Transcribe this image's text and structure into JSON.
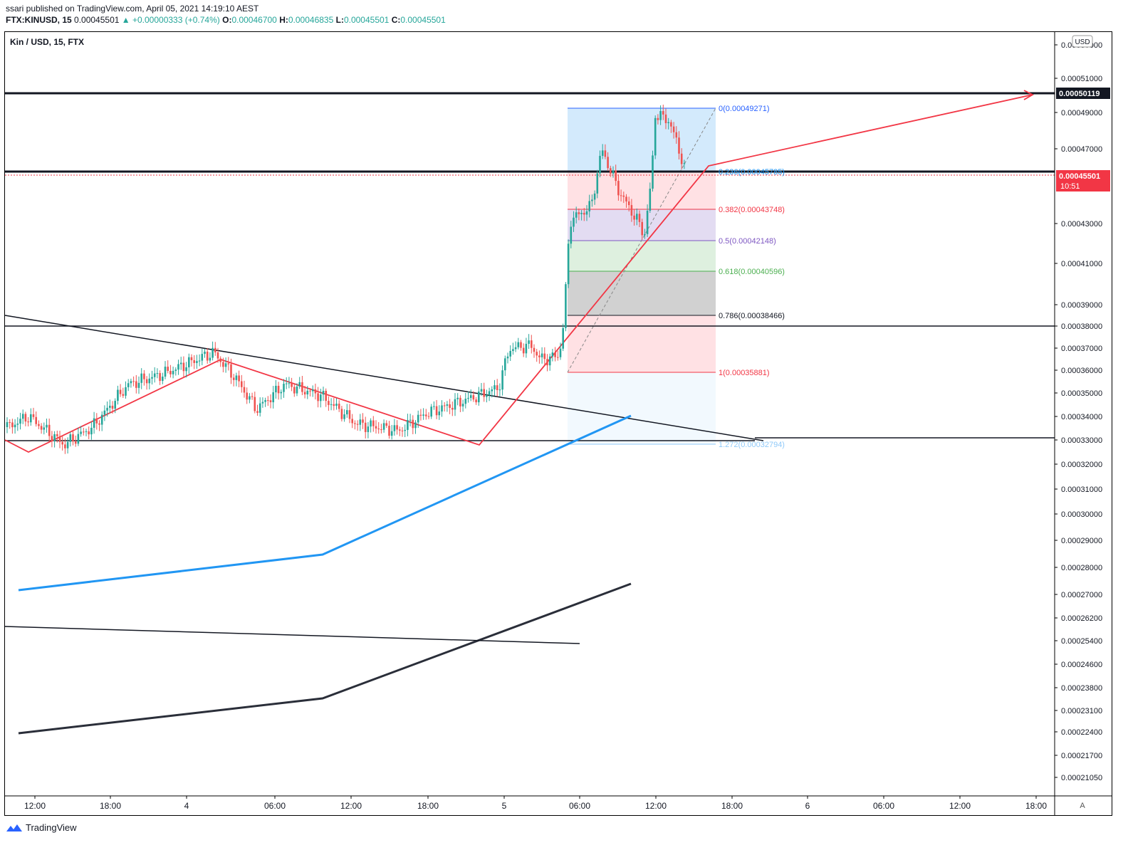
{
  "header": {
    "published": "ssari published on TradingView.com, April 05, 2021 14:19:10 AEST",
    "symbol": "FTX:KINUSD, 15",
    "last": "0.00045501",
    "change": "▲ +0.00000333 (+0.74%)",
    "o_label": "O:",
    "o": "0.00046700",
    "h_label": "H:",
    "h": "0.00046835",
    "l_label": "L:",
    "l": "0.00045501",
    "c_label": "C:",
    "c": "0.00045501"
  },
  "footer": {
    "brand": "TradingView"
  },
  "chart_data": {
    "type": "candlestick",
    "title": "Kin / USD, 15, FTX",
    "currency_badge": "USD",
    "autoscale_label": "A",
    "y_axis_ticks": [
      "0.0005?000",
      "0.00051000",
      "0.00049000",
      "0.00047000",
      "0.00043000",
      "0.00041000",
      "0.00039000",
      "0.00038000",
      "0.00037000",
      "0.00036000",
      "0.00035000",
      "0.00034000",
      "0.00033000",
      "0.00032000",
      "0.00031000",
      "0.00030000",
      "0.00029000",
      "0.00028000",
      "0.00027000",
      "0.00026200",
      "0.00025400",
      "0.00024600",
      "0.00023800",
      "0.00023100",
      "0.00022400",
      "0.00021700",
      "0.00021050"
    ],
    "x_axis_ticks": [
      "12:00",
      "18:00",
      "4",
      "06:00",
      "12:00",
      "18:00",
      "5",
      "06:00",
      "12:00",
      "18:00",
      "6",
      "06:00",
      "12:00",
      "18:00"
    ],
    "price_labels": [
      {
        "value": "0.00050119",
        "style": "dark"
      },
      {
        "value": "0.00045501",
        "time": "10:51",
        "style": "red"
      }
    ],
    "fib_levels": [
      {
        "label": "0(0.00049271)",
        "color": "#2962ff"
      },
      {
        "label": "0.236(0.00045785)",
        "color": "#2196f3"
      },
      {
        "label": "0.382(0.00043748)",
        "color": "#f23645"
      },
      {
        "label": "0.5(0.00042148)",
        "color": "#7e57c2"
      },
      {
        "label": "0.618(0.00040596)",
        "color": "#4caf50"
      },
      {
        "label": "0.786(0.00038466)",
        "color": "#131722"
      },
      {
        "label": "1(0.00035881)",
        "color": "#f23645"
      },
      {
        "label": "1.272(0.00032794)",
        "color": "#90caf9"
      }
    ],
    "colors": {
      "up": "#26a69a",
      "down": "#ef5350",
      "red_line": "#f23645",
      "blue_line": "#2196f3",
      "dark_line": "#2a2e39"
    }
  }
}
